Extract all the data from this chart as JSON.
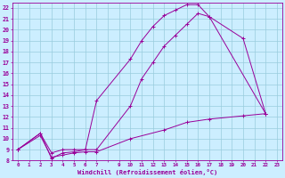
{
  "xlabel": "Windchill (Refroidissement éolien,°C)",
  "bg_color": "#cceeff",
  "grid_color": "#99ccdd",
  "line_color": "#990099",
  "xlim": [
    -0.5,
    23.5
  ],
  "ylim": [
    8,
    22.5
  ],
  "ytick_vals": [
    8,
    9,
    10,
    11,
    12,
    13,
    14,
    15,
    16,
    17,
    18,
    19,
    20,
    21,
    22
  ],
  "series": [
    {
      "x": [
        0,
        2,
        3,
        4,
        5,
        6,
        7,
        10,
        11,
        12,
        13,
        14,
        15,
        16,
        17,
        22
      ],
      "y": [
        9,
        10.5,
        8.2,
        8.7,
        8.8,
        9.0,
        13.5,
        17.3,
        19.0,
        20.3,
        21.3,
        21.8,
        22.3,
        22.3,
        21.2,
        12.3
      ]
    },
    {
      "x": [
        0,
        2,
        3,
        4,
        5,
        6,
        7,
        10,
        11,
        12,
        13,
        14,
        15,
        16,
        17,
        20,
        22
      ],
      "y": [
        9,
        10.5,
        8.7,
        9.0,
        9.0,
        9.0,
        9.0,
        13.0,
        15.5,
        17.0,
        18.5,
        19.5,
        20.5,
        21.5,
        21.2,
        19.2,
        12.3
      ]
    },
    {
      "x": [
        0,
        2,
        3,
        4,
        5,
        6,
        7,
        10,
        13,
        15,
        17,
        20,
        22
      ],
      "y": [
        9,
        10.3,
        8.3,
        8.5,
        8.7,
        8.8,
        8.8,
        10.0,
        10.8,
        11.5,
        11.8,
        12.1,
        12.3
      ]
    }
  ]
}
